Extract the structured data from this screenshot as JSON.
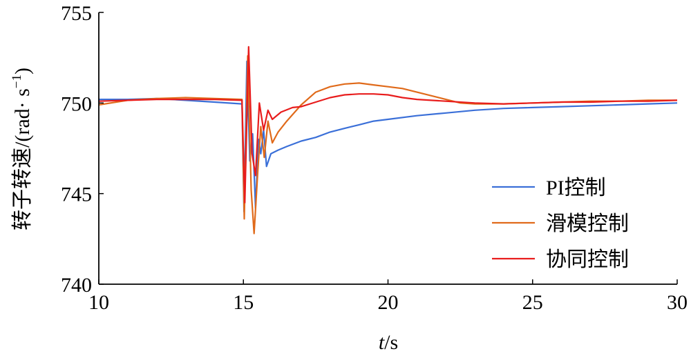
{
  "chart_data": {
    "type": "line",
    "xlabel_italic": "t",
    "xlabel_unit": "/s",
    "ylabel_main": "转子转速/(rad· s",
    "ylabel_sup": "−1",
    "ylabel_close": ")",
    "xlim": [
      10,
      30
    ],
    "ylim": [
      740,
      755
    ],
    "xticks": [
      10,
      15,
      20,
      25,
      30
    ],
    "yticks": [
      740,
      745,
      750,
      755
    ],
    "grid": false,
    "legend_position": "bottom-right",
    "series": [
      {
        "name": "PI控制",
        "color": "#3a6fd8",
        "points": [
          [
            10,
            750.2
          ],
          [
            11,
            750.2
          ],
          [
            12,
            750.25
          ],
          [
            13,
            750.15
          ],
          [
            14,
            750.05
          ],
          [
            14.95,
            749.95
          ],
          [
            15.02,
            744.0
          ],
          [
            15.12,
            752.3
          ],
          [
            15.22,
            746.8
          ],
          [
            15.32,
            748.3
          ],
          [
            15.42,
            744.2
          ],
          [
            15.52,
            748.0
          ],
          [
            15.6,
            747.2
          ],
          [
            15.7,
            748.5
          ],
          [
            15.8,
            746.5
          ],
          [
            15.95,
            747.2
          ],
          [
            16.2,
            747.4
          ],
          [
            16.5,
            747.6
          ],
          [
            17,
            747.9
          ],
          [
            17.5,
            748.1
          ],
          [
            18,
            748.4
          ],
          [
            18.5,
            748.6
          ],
          [
            19,
            748.8
          ],
          [
            19.5,
            749.0
          ],
          [
            20,
            749.1
          ],
          [
            21,
            749.3
          ],
          [
            22,
            749.45
          ],
          [
            23,
            749.6
          ],
          [
            24,
            749.7
          ],
          [
            25,
            749.75
          ],
          [
            26,
            749.8
          ],
          [
            27,
            749.85
          ],
          [
            28,
            749.9
          ],
          [
            29,
            749.95
          ],
          [
            30,
            750.0
          ]
        ]
      },
      {
        "name": "滑模控制",
        "color": "#e06a1a",
        "points": [
          [
            10,
            749.9
          ],
          [
            11,
            750.15
          ],
          [
            12,
            750.25
          ],
          [
            13,
            750.3
          ],
          [
            14,
            750.25
          ],
          [
            14.95,
            750.2
          ],
          [
            15.03,
            743.6
          ],
          [
            15.15,
            752.6
          ],
          [
            15.27,
            745.2
          ],
          [
            15.37,
            742.8
          ],
          [
            15.5,
            746.3
          ],
          [
            15.6,
            748.7
          ],
          [
            15.72,
            747.0
          ],
          [
            15.85,
            749.0
          ],
          [
            16,
            747.8
          ],
          [
            16.2,
            748.4
          ],
          [
            16.5,
            749.0
          ],
          [
            17,
            749.9
          ],
          [
            17.5,
            750.6
          ],
          [
            18,
            750.9
          ],
          [
            18.5,
            751.05
          ],
          [
            19,
            751.1
          ],
          [
            19.5,
            751.0
          ],
          [
            20,
            750.9
          ],
          [
            20.5,
            750.8
          ],
          [
            21,
            750.6
          ],
          [
            21.5,
            750.4
          ],
          [
            22,
            750.2
          ],
          [
            22.5,
            750.0
          ],
          [
            23,
            749.95
          ],
          [
            24,
            749.95
          ],
          [
            25,
            750.0
          ],
          [
            26,
            750.05
          ],
          [
            27,
            750.1
          ],
          [
            28,
            750.1
          ],
          [
            29,
            750.15
          ],
          [
            30,
            750.15
          ]
        ]
      },
      {
        "name": "协同控制",
        "color": "#e81c1c",
        "points": [
          [
            10,
            750.1
          ],
          [
            11,
            750.15
          ],
          [
            12,
            750.2
          ],
          [
            13,
            750.2
          ],
          [
            14,
            750.2
          ],
          [
            14.95,
            750.15
          ],
          [
            15.05,
            744.5
          ],
          [
            15.18,
            753.1
          ],
          [
            15.3,
            747.2
          ],
          [
            15.42,
            746.0
          ],
          [
            15.55,
            750.0
          ],
          [
            15.7,
            748.5
          ],
          [
            15.85,
            749.6
          ],
          [
            16,
            749.1
          ],
          [
            16.3,
            749.5
          ],
          [
            16.7,
            749.75
          ],
          [
            17,
            749.8
          ],
          [
            17.5,
            750.05
          ],
          [
            18,
            750.3
          ],
          [
            18.5,
            750.45
          ],
          [
            19,
            750.5
          ],
          [
            19.5,
            750.5
          ],
          [
            20,
            750.45
          ],
          [
            20.5,
            750.3
          ],
          [
            21,
            750.2
          ],
          [
            22,
            750.1
          ],
          [
            23,
            750.0
          ],
          [
            24,
            749.95
          ],
          [
            25,
            750.0
          ],
          [
            26,
            750.05
          ],
          [
            27,
            750.05
          ],
          [
            28,
            750.1
          ],
          [
            29,
            750.1
          ],
          [
            30,
            750.15
          ]
        ]
      }
    ]
  }
}
